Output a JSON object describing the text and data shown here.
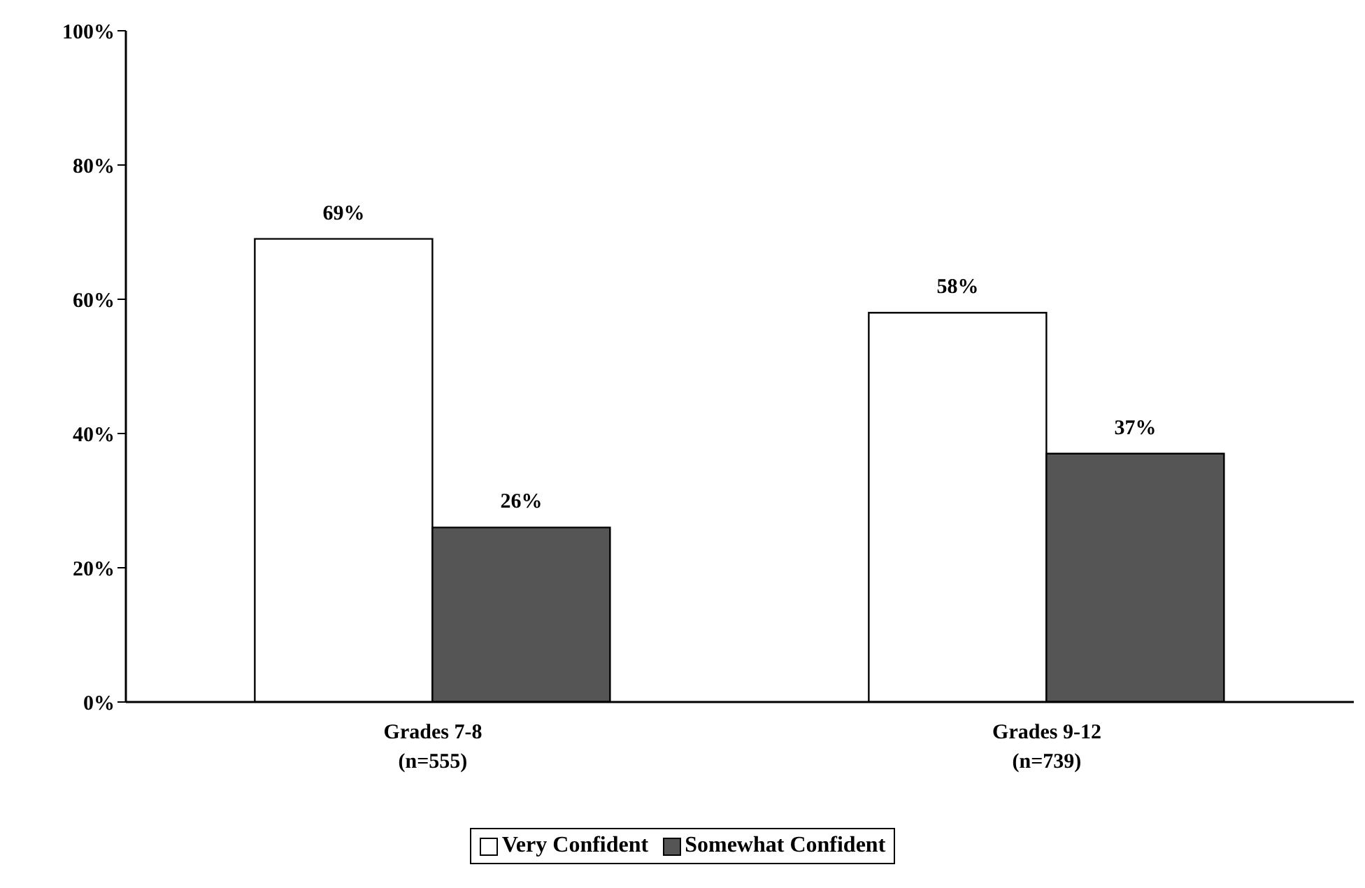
{
  "chart_data": {
    "type": "bar",
    "categories": [
      "Grades 7-8\n(n=555)",
      "Grades 9-12\n(n=739)"
    ],
    "series": [
      {
        "name": "Very Confident",
        "color": "#ffffff",
        "values": [
          69,
          58
        ],
        "value_labels": [
          "69%",
          "58%"
        ]
      },
      {
        "name": "Somewhat Confident",
        "color": "#555555",
        "values": [
          26,
          37
        ],
        "value_labels": [
          "26%",
          "37%"
        ]
      }
    ],
    "ylim": [
      0,
      100
    ],
    "yticks": [
      {
        "value": 0,
        "label": "0%"
      },
      {
        "value": 20,
        "label": "20%"
      },
      {
        "value": 40,
        "label": "40%"
      },
      {
        "value": 60,
        "label": "60%"
      },
      {
        "value": 80,
        "label": "80%"
      },
      {
        "value": 100,
        "label": "100%"
      }
    ],
    "grid": false,
    "legend": "bottom"
  }
}
